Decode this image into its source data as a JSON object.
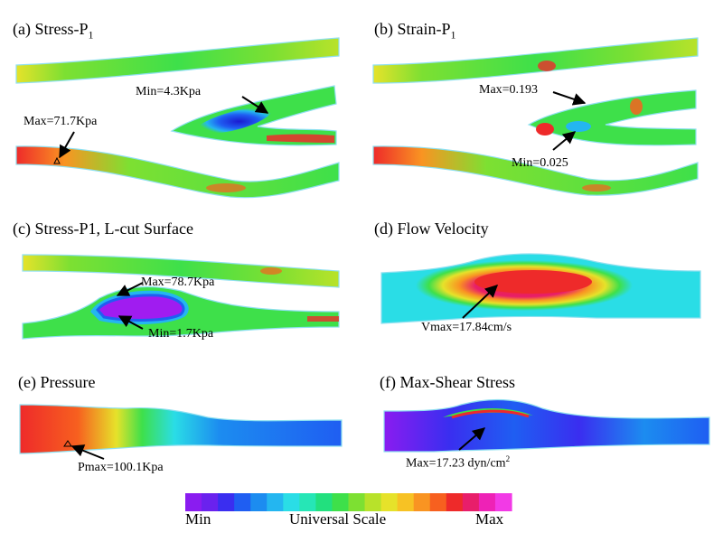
{
  "panels": {
    "a": {
      "title": "(a) Stress-P",
      "title_sub": "1",
      "max_label": "Max=71.7Kpa",
      "min_label": "Min=4.3Kpa"
    },
    "b": {
      "title": "(b) Strain-P",
      "title_sub": "1",
      "max_label": "Max=0.193",
      "min_label": "Min=0.025"
    },
    "c": {
      "title": "(c) Stress-P1, L-cut Surface",
      "max_label": "Max=78.7Kpa",
      "min_label": "Min=1.7Kpa"
    },
    "d": {
      "title": "(d) Flow Velocity",
      "max_label": "Vmax=17.84cm/s"
    },
    "e": {
      "title": "(e) Pressure",
      "max_label": "Pmax=100.1Kpa"
    },
    "f": {
      "title": "(f) Max-Shear Stress",
      "max_label": "Max=17.23 dyn/cm",
      "max_label_sup": "2"
    }
  },
  "scale": {
    "min_label": "Min",
    "title": "Universal Scale",
    "max_label": "Max",
    "colors": [
      "#8a1cf0",
      "#6a22ee",
      "#3a2ef0",
      "#1f5ef2",
      "#1c8cf0",
      "#24b6f0",
      "#2adde6",
      "#26e6b6",
      "#22e07e",
      "#3ee04a",
      "#7de032",
      "#b8e22a",
      "#e6e22a",
      "#f7c224",
      "#f99422",
      "#f7601f",
      "#ee2a2a",
      "#e81e6a",
      "#ee22b6",
      "#f23ae6"
    ]
  },
  "colors": {
    "arrow": "#000000",
    "vessel_green": "#4fdc5a",
    "vessel_edge": "#8fe0f0",
    "hot": "#ee2a2a",
    "cold": "#3a2ef0",
    "plaque": "#a01cf0"
  },
  "icons": [
    "arrow-icon",
    "marker-triangle-icon"
  ]
}
